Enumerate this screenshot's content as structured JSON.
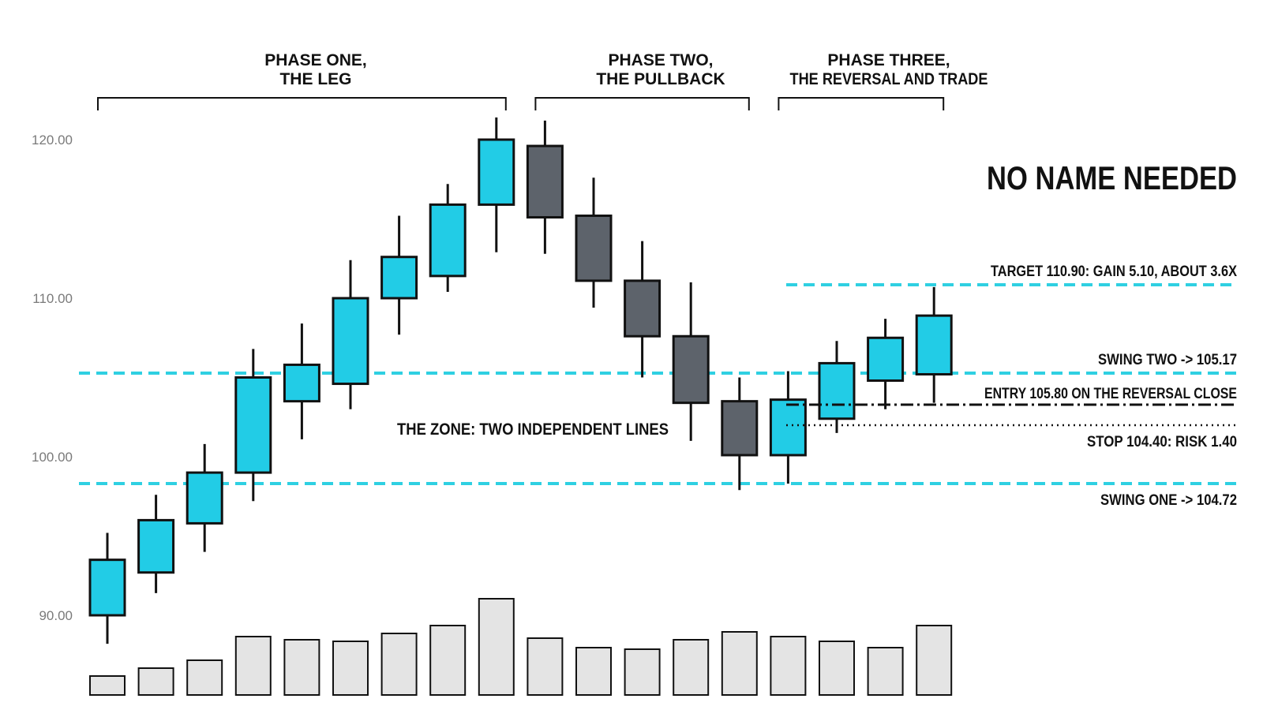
{
  "title": "NO NAME NEEDED",
  "phases": [
    {
      "line1": "PHASE ONE,",
      "line2": "THE LEG",
      "from_candle": 0,
      "to_candle": 8
    },
    {
      "line1": "PHASE TWO,",
      "line2": "THE PULLBACK",
      "from_candle": 9,
      "to_candle": 13
    },
    {
      "line1": "PHASE THREE,",
      "line2": "THE REVERSAL AND TRADE",
      "from_candle": 14,
      "to_candle": 17
    }
  ],
  "zone_label": "THE ZONE: TWO INDEPENDENT LINES",
  "annotations": {
    "target": "TARGET 110.90: GAIN 5.10, ABOUT 3.6X",
    "swing_two": "SWING TWO -> 105.17",
    "entry": "ENTRY 105.80 ON THE REVERSAL CLOSE",
    "stop": "STOP 104.40: RISK 1.40",
    "swing_one": "SWING ONE -> 104.72"
  },
  "colors": {
    "bull": "#22cce6",
    "bear": "#5d636b",
    "volume": "#e4e4e4",
    "zone_line": "#2fd0e2",
    "outline": "#111111",
    "tick_text": "#7a7a7a"
  },
  "chart_data": {
    "type": "candlestick",
    "yticks": [
      "120.00",
      "110.00",
      "100.00",
      "90.00"
    ],
    "ylim": [
      85,
      122
    ],
    "candles": [
      {
        "open": 90.0,
        "high": 95.2,
        "low": 88.2,
        "close": 93.5,
        "dir": "up"
      },
      {
        "open": 92.7,
        "high": 97.6,
        "low": 91.4,
        "close": 96.0,
        "dir": "up"
      },
      {
        "open": 95.8,
        "high": 100.8,
        "low": 94.0,
        "close": 99.0,
        "dir": "up"
      },
      {
        "open": 99.0,
        "high": 106.8,
        "low": 97.2,
        "close": 105.0,
        "dir": "up"
      },
      {
        "open": 103.5,
        "high": 108.4,
        "low": 101.1,
        "close": 105.8,
        "dir": "up"
      },
      {
        "open": 104.6,
        "high": 112.4,
        "low": 103.0,
        "close": 110.0,
        "dir": "up"
      },
      {
        "open": 110.0,
        "high": 115.2,
        "low": 107.7,
        "close": 112.6,
        "dir": "up"
      },
      {
        "open": 111.4,
        "high": 117.2,
        "low": 110.4,
        "close": 115.9,
        "dir": "up"
      },
      {
        "open": 115.9,
        "high": 121.4,
        "low": 112.9,
        "close": 120.0,
        "dir": "up"
      },
      {
        "open": 119.6,
        "high": 121.2,
        "low": 112.8,
        "close": 115.1,
        "dir": "down"
      },
      {
        "open": 115.2,
        "high": 117.6,
        "low": 109.4,
        "close": 111.1,
        "dir": "down"
      },
      {
        "open": 111.1,
        "high": 113.6,
        "low": 105.0,
        "close": 107.6,
        "dir": "down"
      },
      {
        "open": 107.6,
        "high": 111.0,
        "low": 101.0,
        "close": 103.4,
        "dir": "down"
      },
      {
        "open": 103.5,
        "high": 105.0,
        "low": 97.9,
        "close": 100.1,
        "dir": "down"
      },
      {
        "open": 100.1,
        "high": 105.4,
        "low": 98.3,
        "close": 103.6,
        "dir": "up"
      },
      {
        "open": 102.4,
        "high": 107.3,
        "low": 101.5,
        "close": 105.9,
        "dir": "up"
      },
      {
        "open": 104.8,
        "high": 108.7,
        "low": 103.0,
        "close": 107.5,
        "dir": "up"
      },
      {
        "open": 105.2,
        "high": 110.7,
        "low": 103.4,
        "close": 108.9,
        "dir": "up"
      }
    ],
    "volume": [
      12,
      17,
      22,
      37,
      35,
      34,
      39,
      44,
      61,
      36,
      30,
      29,
      35,
      40,
      37,
      34,
      30,
      44
    ],
    "levels": {
      "target": 110.9,
      "swing_two": 105.17,
      "entry": 105.8,
      "stop": 104.4,
      "swing_one": 104.72
    }
  }
}
